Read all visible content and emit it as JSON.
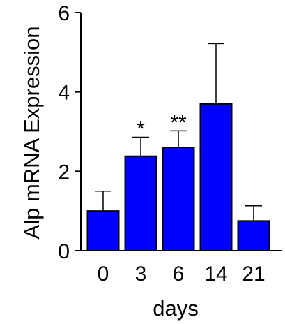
{
  "chart_data": {
    "type": "bar",
    "categories": [
      "0",
      "3",
      "6",
      "14",
      "21"
    ],
    "values": [
      1.0,
      2.38,
      2.6,
      3.7,
      0.75
    ],
    "errors": [
      0.5,
      0.48,
      0.42,
      1.52,
      0.38
    ],
    "annotations": [
      "",
      "*",
      "**",
      "",
      ""
    ],
    "xlabel": "days",
    "ylabel": "Alp mRNA Expression",
    "ylim": [
      0,
      6
    ],
    "yticks": [
      0,
      2,
      4,
      6
    ],
    "grid": false,
    "bar_color": "#0000ff"
  }
}
